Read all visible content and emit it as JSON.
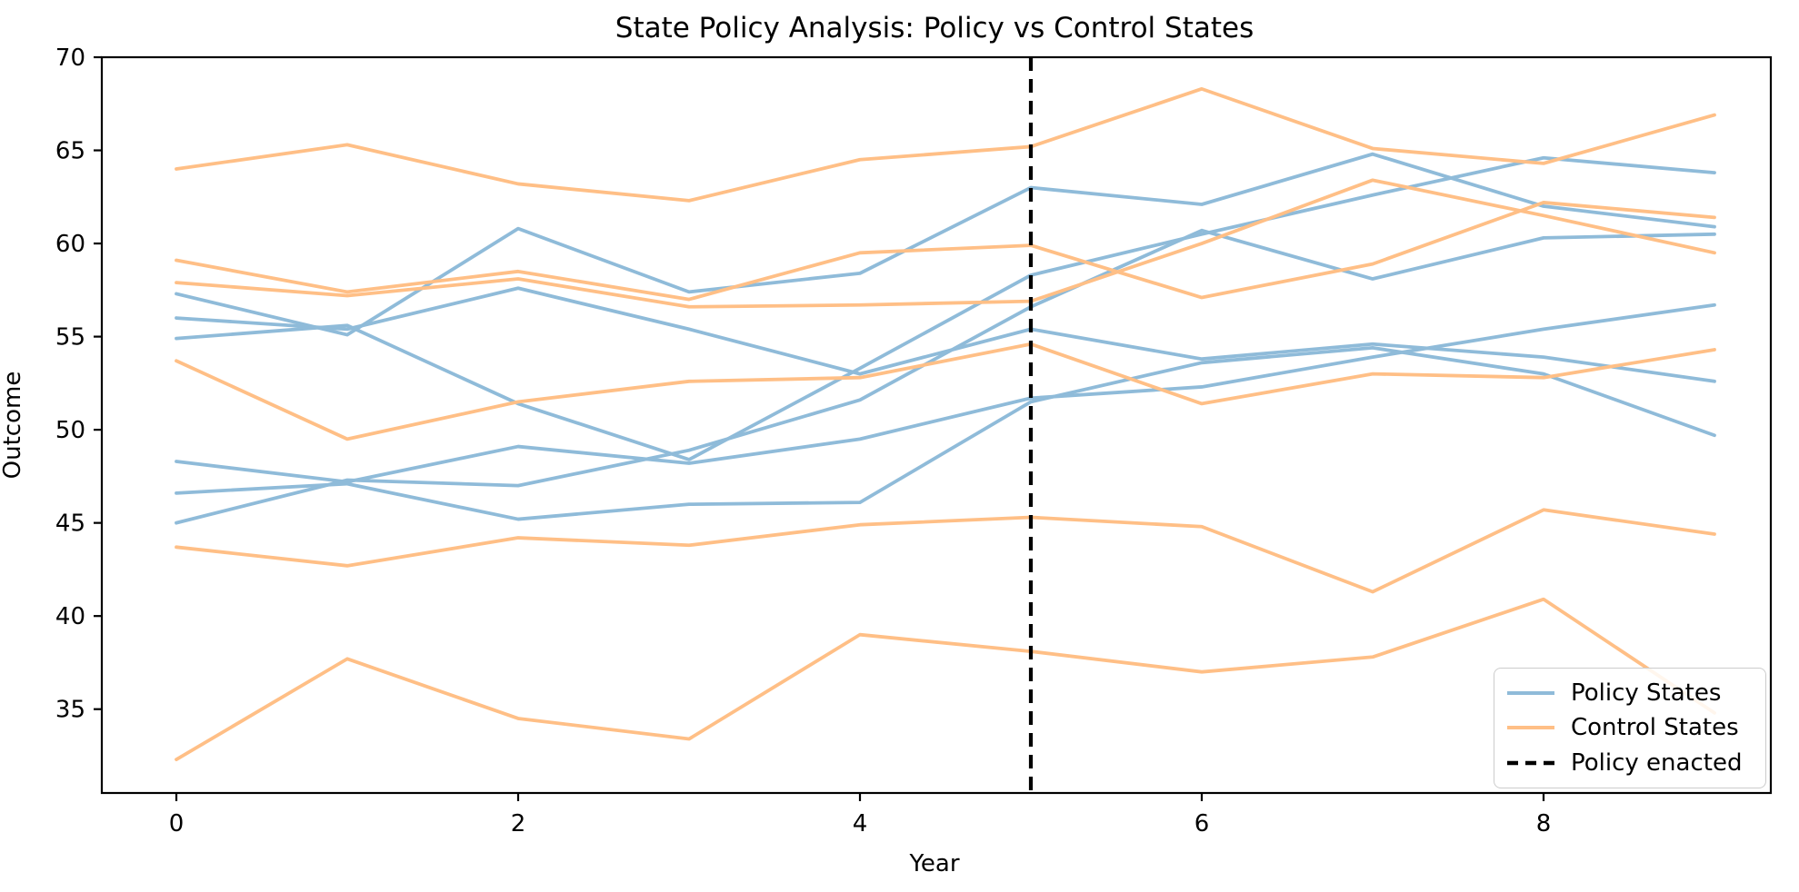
{
  "chart_data": {
    "type": "line",
    "title": "State Policy Analysis: Policy vs Control States",
    "xlabel": "Year",
    "ylabel": "Outcome",
    "x": [
      0,
      1,
      2,
      3,
      4,
      5,
      6,
      7,
      8,
      9
    ],
    "xticks": [
      0,
      2,
      4,
      6,
      8
    ],
    "xtick_labels": [
      "0",
      "2",
      "4",
      "6",
      "8"
    ],
    "yticks": [
      35,
      40,
      45,
      50,
      55,
      60,
      65,
      70
    ],
    "ytick_labels": [
      "35",
      "40",
      "45",
      "50",
      "55",
      "60",
      "65",
      "70"
    ],
    "xlim": [
      -0.44,
      9.33
    ],
    "ylim": [
      30.5,
      70
    ],
    "grid": false,
    "legend_position": "lower right",
    "policy_color": "#8fbbd9",
    "control_color": "#ffbf86",
    "event_line_color": "#000000",
    "event_line_x": 5,
    "series": [
      {
        "name": "Policy States",
        "group": "policy",
        "values": [
          57.3,
          55.1,
          60.8,
          57.4,
          58.4,
          63.0,
          62.1,
          64.8,
          62.0,
          60.9
        ]
      },
      {
        "name": "Policy States",
        "group": "policy",
        "values": [
          56.0,
          55.4,
          57.6,
          55.4,
          53.0,
          55.4,
          53.8,
          54.6,
          53.9,
          52.6
        ]
      },
      {
        "name": "Policy States",
        "group": "policy",
        "values": [
          54.9,
          55.6,
          51.4,
          48.4,
          53.3,
          58.3,
          60.5,
          62.6,
          64.6,
          63.8
        ]
      },
      {
        "name": "Policy States",
        "group": "policy",
        "values": [
          48.3,
          47.2,
          49.1,
          48.2,
          49.5,
          51.7,
          52.3,
          53.9,
          55.4,
          56.7
        ]
      },
      {
        "name": "Policy States",
        "group": "policy",
        "values": [
          46.6,
          47.1,
          45.2,
          46.0,
          46.1,
          51.5,
          53.6,
          54.4,
          53.0,
          49.7
        ]
      },
      {
        "name": "Policy States",
        "group": "policy",
        "values": [
          45.0,
          47.3,
          47.0,
          48.9,
          51.6,
          56.6,
          60.7,
          58.1,
          60.3,
          60.5
        ]
      },
      {
        "name": "Control States",
        "group": "control",
        "values": [
          64.0,
          65.3,
          63.2,
          62.3,
          64.5,
          65.2,
          68.3,
          65.1,
          64.3,
          66.9
        ]
      },
      {
        "name": "Control States",
        "group": "control",
        "values": [
          59.1,
          57.4,
          58.5,
          57.0,
          59.5,
          59.9,
          57.1,
          58.9,
          62.2,
          61.4
        ]
      },
      {
        "name": "Control States",
        "group": "control",
        "values": [
          57.9,
          57.2,
          58.1,
          56.6,
          56.7,
          56.9,
          60.0,
          63.4,
          61.5,
          59.5
        ]
      },
      {
        "name": "Control States",
        "group": "control",
        "values": [
          53.7,
          49.5,
          51.5,
          52.6,
          52.8,
          54.6,
          51.4,
          53.0,
          52.8,
          54.3
        ]
      },
      {
        "name": "Control States",
        "group": "control",
        "values": [
          43.7,
          42.7,
          44.2,
          43.8,
          44.9,
          45.3,
          44.8,
          41.3,
          45.7,
          44.4
        ]
      },
      {
        "name": "Control States",
        "group": "control",
        "values": [
          32.3,
          37.7,
          34.5,
          33.4,
          39.0,
          38.1,
          37.0,
          37.8,
          40.9,
          34.8
        ]
      }
    ],
    "legend": [
      {
        "label": "Policy States",
        "style": "solid",
        "color": "#8fbbd9"
      },
      {
        "label": "Control States",
        "style": "solid",
        "color": "#ffbf86"
      },
      {
        "label": "Policy enacted",
        "style": "dashed",
        "color": "#000000"
      }
    ]
  }
}
